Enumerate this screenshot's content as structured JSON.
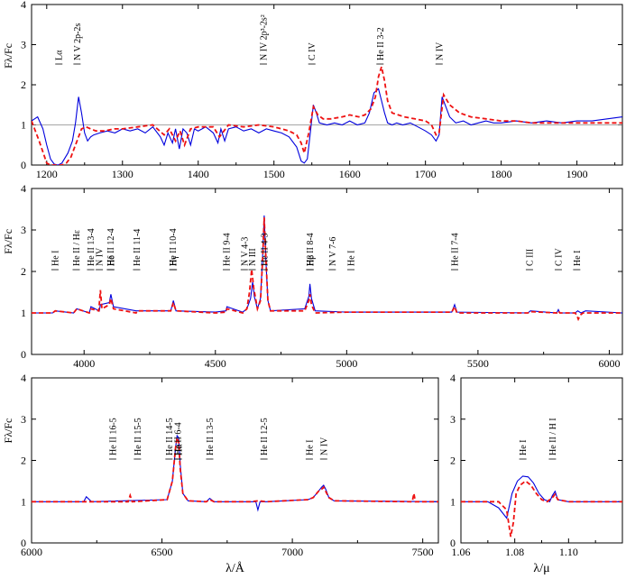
{
  "chart_data": [
    {
      "type": "line",
      "panel": "uv",
      "xlabel": "",
      "ylabel": "Fλ/Fc",
      "xlim": [
        1180,
        1960
      ],
      "ylim": [
        0,
        4
      ],
      "xticks": [
        1200,
        1300,
        1400,
        1500,
        1600,
        1700,
        1800,
        1900
      ],
      "yticks": [
        0,
        1,
        2,
        3,
        4
      ],
      "reference_line": 1,
      "colors": {
        "observed": "#0000dd",
        "model": "#ee1111"
      },
      "annotations": [
        {
          "text": "Lα",
          "x": 1216
        },
        {
          "text": "N V 2p-2s",
          "x": 1240
        },
        {
          "text": "N IV 2p³-2s²",
          "x": 1486
        },
        {
          "text": "C IV",
          "x": 1550
        },
        {
          "text": "He II 3-2",
          "x": 1640
        },
        {
          "text": "N IV",
          "x": 1718
        }
      ],
      "series": [
        {
          "style": "solid",
          "color": "#0000dd",
          "x": [
            1180,
            1188,
            1195,
            1200,
            1205,
            1210,
            1215,
            1220,
            1228,
            1234,
            1238,
            1242,
            1246,
            1250,
            1254,
            1258,
            1262,
            1270,
            1280,
            1290,
            1300,
            1310,
            1320,
            1330,
            1340,
            1350,
            1355,
            1360,
            1366,
            1370,
            1375,
            1380,
            1385,
            1390,
            1395,
            1400,
            1410,
            1420,
            1426,
            1430,
            1435,
            1440,
            1450,
            1460,
            1470,
            1480,
            1490,
            1500,
            1510,
            1520,
            1530,
            1536,
            1540,
            1544,
            1548,
            1552,
            1556,
            1560,
            1570,
            1580,
            1590,
            1600,
            1610,
            1620,
            1626,
            1632,
            1638,
            1642,
            1646,
            1650,
            1656,
            1662,
            1670,
            1680,
            1690,
            1700,
            1708,
            1714,
            1718,
            1722,
            1726,
            1732,
            1740,
            1750,
            1760,
            1770,
            1780,
            1790,
            1800,
            1820,
            1840,
            1860,
            1880,
            1900,
            1920,
            1940,
            1960
          ],
          "y": [
            1.1,
            1.2,
            0.9,
            0.5,
            0.15,
            0.02,
            0.0,
            0.05,
            0.3,
            0.6,
            1.05,
            1.7,
            1.3,
            0.8,
            0.6,
            0.7,
            0.75,
            0.8,
            0.85,
            0.8,
            0.9,
            0.85,
            0.9,
            0.8,
            0.95,
            0.7,
            0.5,
            0.8,
            0.55,
            0.9,
            0.4,
            0.9,
            0.8,
            0.5,
            0.9,
            0.85,
            0.95,
            0.8,
            0.55,
            0.9,
            0.6,
            0.9,
            0.95,
            0.85,
            0.9,
            0.8,
            0.9,
            0.85,
            0.8,
            0.7,
            0.45,
            0.1,
            0.05,
            0.15,
            0.8,
            1.5,
            1.3,
            1.05,
            1.0,
            1.05,
            1.0,
            1.1,
            1.0,
            1.05,
            1.3,
            1.8,
            1.9,
            1.6,
            1.3,
            1.05,
            1.0,
            1.05,
            1.0,
            1.05,
            0.95,
            0.85,
            0.75,
            0.6,
            0.75,
            1.7,
            1.5,
            1.2,
            1.05,
            1.1,
            1.0,
            1.05,
            1.1,
            1.05,
            1.05,
            1.1,
            1.05,
            1.1,
            1.05,
            1.1,
            1.1,
            1.15,
            1.2
          ]
        },
        {
          "style": "dashed",
          "color": "#ee1111",
          "x": [
            1180,
            1190,
            1200,
            1205,
            1210,
            1215,
            1220,
            1226,
            1232,
            1236,
            1240,
            1246,
            1252,
            1258,
            1265,
            1275,
            1290,
            1300,
            1320,
            1340,
            1355,
            1362,
            1370,
            1376,
            1382,
            1390,
            1400,
            1420,
            1428,
            1440,
            1460,
            1480,
            1500,
            1510,
            1520,
            1530,
            1536,
            1540,
            1546,
            1552,
            1558,
            1565,
            1575,
            1590,
            1600,
            1612,
            1620,
            1628,
            1634,
            1638,
            1642,
            1646,
            1650,
            1656,
            1664,
            1672,
            1686,
            1700,
            1708,
            1714,
            1718,
            1724,
            1732,
            1745,
            1760,
            1780,
            1800,
            1820,
            1840,
            1870,
            1900,
            1930,
            1960
          ],
          "y": [
            1.1,
            0.6,
            0.05,
            0.0,
            0.0,
            0.0,
            0.0,
            0.05,
            0.2,
            0.4,
            0.6,
            0.9,
            0.95,
            0.9,
            0.85,
            0.85,
            0.9,
            0.9,
            0.95,
            1.0,
            0.75,
            0.9,
            0.6,
            0.85,
            0.5,
            0.9,
            0.95,
            0.95,
            0.7,
            1.0,
            0.95,
            1.0,
            0.95,
            0.9,
            0.85,
            0.75,
            0.55,
            0.3,
            0.8,
            1.45,
            1.25,
            1.15,
            1.15,
            1.2,
            1.25,
            1.2,
            1.25,
            1.4,
            1.7,
            2.2,
            2.45,
            2.1,
            1.6,
            1.3,
            1.25,
            1.2,
            1.15,
            1.1,
            1.0,
            0.75,
            0.8,
            1.75,
            1.5,
            1.3,
            1.2,
            1.15,
            1.1,
            1.1,
            1.05,
            1.05,
            1.05,
            1.05,
            1.05
          ]
        }
      ]
    },
    {
      "type": "line",
      "panel": "optical",
      "xlabel": "",
      "ylabel": "Fλ/Fc",
      "xlim": [
        3800,
        6050
      ],
      "ylim": [
        0,
        4
      ],
      "xticks": [
        4000,
        4500,
        5000,
        5500,
        6000
      ],
      "yticks": [
        0,
        1,
        2,
        3,
        4
      ],
      "annotations": [
        {
          "text": "He I",
          "x": 3889
        },
        {
          "text": "He II / Hε",
          "x": 3970
        },
        {
          "text": "He II 13-4",
          "x": 4025
        },
        {
          "text": "N IV",
          "x": 4058
        },
        {
          "text": "He II 12-4",
          "x": 4100
        },
        {
          "text": "Hδ",
          "x": 4102
        },
        {
          "text": "He II 11-4",
          "x": 4200
        },
        {
          "text": "He II 10-4",
          "x": 4338
        },
        {
          "text": "Hγ",
          "x": 4340
        },
        {
          "text": "He II 9-4",
          "x": 4542
        },
        {
          "text": "N V 4-3",
          "x": 4610
        },
        {
          "text": "N III",
          "x": 4640
        },
        {
          "text": "He II 4-3",
          "x": 4686
        },
        {
          "text": "He II 8-4",
          "x": 4859
        },
        {
          "text": "Hβ",
          "x": 4861
        },
        {
          "text": "N V 7-6",
          "x": 4945
        },
        {
          "text": "He I",
          "x": 5016
        },
        {
          "text": "He II 7-4",
          "x": 5411
        },
        {
          "text": "C III",
          "x": 5696
        },
        {
          "text": "C IV",
          "x": 5806
        },
        {
          "text": "He I",
          "x": 5876
        }
      ],
      "series": [
        {
          "style": "solid",
          "color": "#0000dd",
          "x": [
            3800,
            3880,
            3890,
            3960,
            3972,
            4020,
            4026,
            4058,
            4062,
            4096,
            4102,
            4112,
            4198,
            4202,
            4330,
            4340,
            4350,
            4500,
            4540,
            4544,
            4604,
            4620,
            4634,
            4642,
            4648,
            4660,
            4672,
            4680,
            4686,
            4692,
            4700,
            4710,
            4840,
            4856,
            4860,
            4866,
            4880,
            5000,
            5400,
            5411,
            5420,
            5690,
            5700,
            5800,
            5806,
            5812,
            5870,
            5880,
            5892,
            5910,
            6050
          ],
          "y": [
            1.0,
            1.0,
            1.05,
            1.0,
            1.1,
            1.0,
            1.15,
            1.05,
            1.2,
            1.25,
            1.45,
            1.15,
            1.05,
            1.05,
            1.05,
            1.3,
            1.05,
            1.02,
            1.05,
            1.15,
            1.02,
            1.1,
            1.35,
            1.75,
            1.4,
            1.1,
            1.35,
            2.4,
            3.35,
            2.3,
            1.3,
            1.05,
            1.1,
            1.4,
            1.7,
            1.35,
            1.05,
            1.02,
            1.02,
            1.2,
            1.02,
            1.0,
            1.05,
            1.0,
            1.08,
            1.0,
            1.0,
            1.05,
            1.0,
            1.05,
            1.0
          ]
        },
        {
          "style": "dashed",
          "color": "#ee1111",
          "x": [
            3800,
            3880,
            3890,
            3960,
            3972,
            4020,
            4026,
            4056,
            4062,
            4068,
            4096,
            4102,
            4112,
            4198,
            4202,
            4330,
            4340,
            4350,
            4500,
            4540,
            4544,
            4604,
            4620,
            4630,
            4638,
            4646,
            4660,
            4672,
            4680,
            4686,
            4692,
            4700,
            4710,
            4840,
            4856,
            4860,
            4866,
            4880,
            5000,
            5400,
            5411,
            5420,
            5690,
            5700,
            5800,
            5806,
            5812,
            5870,
            5876,
            5882,
            5890,
            5900,
            6050
          ],
          "y": [
            1.0,
            1.0,
            1.05,
            1.0,
            1.1,
            1.0,
            1.1,
            1.05,
            1.55,
            1.1,
            1.2,
            1.35,
            1.1,
            1.0,
            1.05,
            1.05,
            1.25,
            1.05,
            1.0,
            1.02,
            1.1,
            1.0,
            1.1,
            1.5,
            2.05,
            1.6,
            1.1,
            1.3,
            2.3,
            3.3,
            2.35,
            1.3,
            1.05,
            1.05,
            1.3,
            1.45,
            1.2,
            1.0,
            1.02,
            1.02,
            1.15,
            1.0,
            1.0,
            1.03,
            1.0,
            1.05,
            1.0,
            1.0,
            0.95,
            0.85,
            0.95,
            1.0,
            1.0
          ]
        }
      ]
    },
    {
      "type": "line",
      "panel": "red",
      "xlabel": "λ/Å",
      "ylabel": "Fλ/Fc",
      "xlim": [
        6000,
        7560
      ],
      "ylim": [
        0,
        4
      ],
      "xticks": [
        6000,
        6500,
        7000,
        7500
      ],
      "yticks": [
        0,
        1,
        2,
        3,
        4
      ],
      "annotations": [
        {
          "text": "He II 16-5",
          "x": 6311
        },
        {
          "text": "He II 15-5",
          "x": 6406
        },
        {
          "text": "He II 14-5",
          "x": 6527
        },
        {
          "text": "He II 6-4",
          "x": 6560
        },
        {
          "text": "Hα",
          "x": 6563
        },
        {
          "text": "He II 13-5",
          "x": 6683
        },
        {
          "text": "He II 12-5",
          "x": 6891
        },
        {
          "text": "He I",
          "x": 7065
        },
        {
          "text": "N IV",
          "x": 7120
        }
      ],
      "series": [
        {
          "style": "solid",
          "color": "#0000dd",
          "x": [
            6000,
            6200,
            6210,
            6230,
            6520,
            6540,
            6552,
            6558,
            6564,
            6570,
            6580,
            6600,
            6670,
            6683,
            6700,
            6860,
            6868,
            6876,
            6900,
            7060,
            7080,
            7100,
            7112,
            7120,
            7128,
            7140,
            7160,
            7560
          ],
          "y": [
            1.0,
            1.0,
            1.12,
            1.0,
            1.05,
            1.5,
            2.3,
            2.6,
            2.55,
            1.9,
            1.2,
            1.02,
            1.0,
            1.08,
            1.0,
            1.0,
            0.8,
            1.0,
            1.0,
            1.05,
            1.1,
            1.25,
            1.35,
            1.4,
            1.3,
            1.1,
            1.02,
            1.0
          ]
        },
        {
          "style": "dashed",
          "color": "#ee1111",
          "x": [
            6000,
            6370,
            6378,
            6386,
            6520,
            6540,
            6552,
            6558,
            6564,
            6570,
            6580,
            6600,
            6670,
            6683,
            6700,
            6840,
            6870,
            6900,
            7060,
            7080,
            7100,
            7112,
            7120,
            7128,
            7140,
            7160,
            7460,
            7466,
            7472,
            7560
          ],
          "y": [
            1.0,
            1.0,
            1.15,
            1.0,
            1.05,
            1.5,
            2.3,
            2.55,
            2.45,
            1.8,
            1.2,
            1.02,
            1.0,
            1.05,
            1.0,
            1.0,
            1.02,
            1.0,
            1.05,
            1.1,
            1.25,
            1.3,
            1.35,
            1.25,
            1.1,
            1.02,
            1.0,
            1.2,
            1.0,
            1.0
          ]
        }
      ]
    },
    {
      "type": "line",
      "panel": "infrared",
      "xlabel": "λ/μ",
      "ylabel": "",
      "xlim": [
        1.06,
        1.12
      ],
      "ylim": [
        0,
        4
      ],
      "xticks": [
        1.06,
        1.08,
        1.1
      ],
      "xtick_labels": [
        "1.06",
        "1.08",
        "1.10"
      ],
      "yticks": [
        0,
        1,
        2,
        3,
        4
      ],
      "annotations": [
        {
          "text": "He I",
          "x": 1.083
        },
        {
          "text": "He II / H I",
          "x": 1.094
        }
      ],
      "series": [
        {
          "style": "solid",
          "color": "#0000dd",
          "x": [
            1.06,
            1.07,
            1.074,
            1.077,
            1.079,
            1.081,
            1.083,
            1.085,
            1.087,
            1.089,
            1.091,
            1.093,
            1.094,
            1.095,
            1.096,
            1.1,
            1.12
          ],
          "y": [
            1.0,
            1.0,
            0.85,
            0.6,
            1.2,
            1.5,
            1.62,
            1.6,
            1.45,
            1.2,
            1.05,
            1.0,
            1.15,
            1.25,
            1.05,
            1.0,
            1.0
          ]
        },
        {
          "style": "dashed",
          "color": "#ee1111",
          "x": [
            1.06,
            1.074,
            1.077,
            1.0785,
            1.0795,
            1.0805,
            1.082,
            1.084,
            1.086,
            1.088,
            1.09,
            1.092,
            1.094,
            1.095,
            1.096,
            1.1,
            1.12
          ],
          "y": [
            1.0,
            1.0,
            0.8,
            0.15,
            0.5,
            1.2,
            1.4,
            1.5,
            1.4,
            1.2,
            1.05,
            1.0,
            1.1,
            1.18,
            1.05,
            1.0,
            1.0
          ]
        }
      ]
    }
  ]
}
